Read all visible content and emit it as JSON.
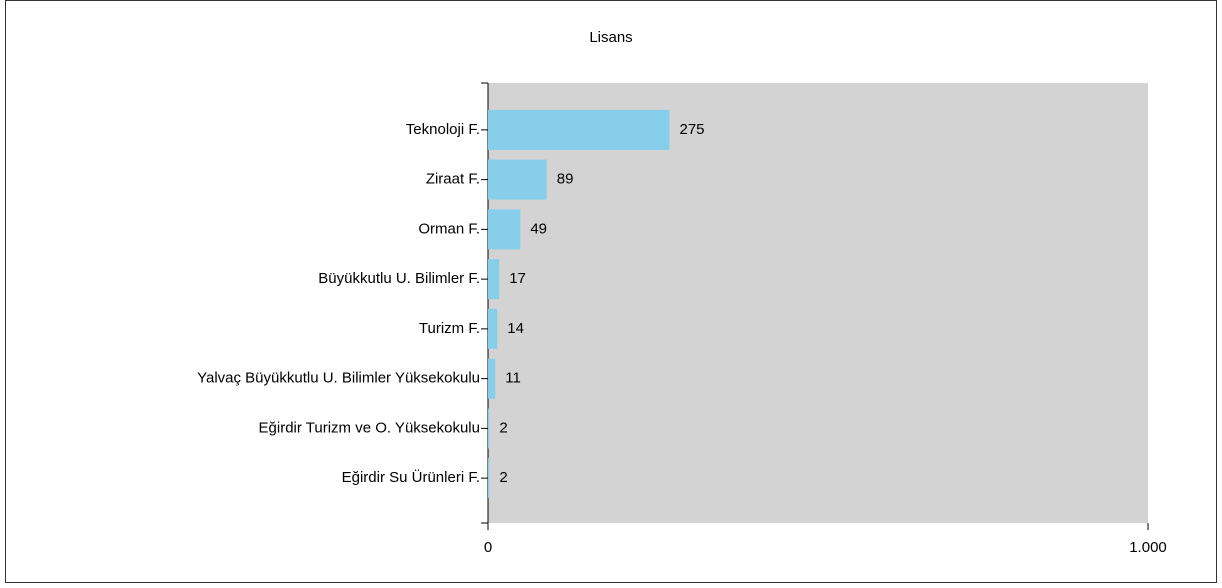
{
  "chart_data": {
    "type": "barh",
    "title": "Lisans",
    "categories": [
      "Teknoloji F.",
      "Ziraat F.",
      "Orman F.",
      "Büyükkutlu U. Bilimler F.",
      "Turizm F.",
      "Yalvaç Büyükkutlu U. Bilimler Yüksekokulu",
      "Eğirdir Turizm ve O. Yüksekokulu",
      "Eğirdir Su Ürünleri F."
    ],
    "values": [
      275,
      89,
      49,
      17,
      14,
      11,
      2,
      2
    ],
    "color": "#87ceeb",
    "xlim": [
      0,
      1000
    ],
    "xticks": [
      0,
      {
        "value": 1000,
        "label": "1.000"
      }
    ]
  }
}
